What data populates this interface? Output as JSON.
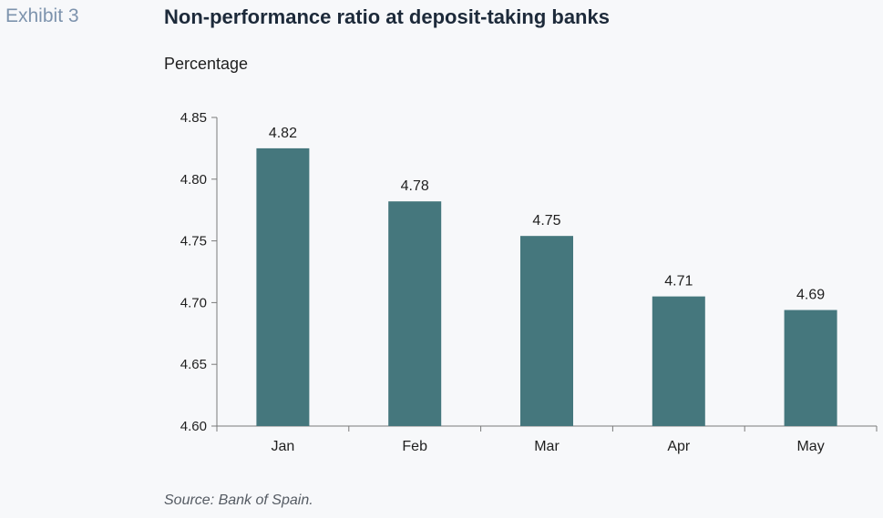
{
  "header": {
    "exhibit_label": "Exhibit 3",
    "title": "Non-performance ratio at deposit-taking banks",
    "unit_label": "Percentage"
  },
  "footer": {
    "source": "Source: Bank of Spain."
  },
  "colors": {
    "bar": "#45777d",
    "axis": "#7a7a7a",
    "text": "#1f1f1f"
  },
  "chart_data": {
    "type": "bar",
    "title": "Non-performance ratio at deposit-taking banks",
    "ylabel": "Percentage",
    "xlabel": "",
    "categories": [
      "Jan",
      "Feb",
      "Mar",
      "Apr",
      "May"
    ],
    "values": [
      4.825,
      4.782,
      4.754,
      4.705,
      4.694
    ],
    "data_labels": [
      "4.82",
      "4.78",
      "4.75",
      "4.71",
      "4.69"
    ],
    "ylim": [
      4.6,
      4.85
    ],
    "yticks": [
      "4.60",
      "4.65",
      "4.70",
      "4.75",
      "4.80",
      "4.85"
    ],
    "grid": false,
    "legend": "none"
  }
}
